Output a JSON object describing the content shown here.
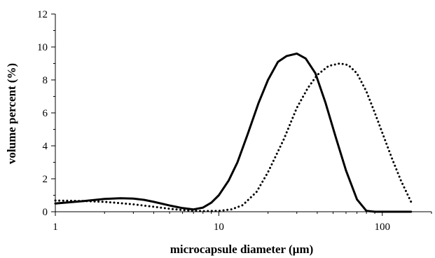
{
  "chart_data": {
    "type": "line",
    "title": "",
    "xlabel": "microcapsule diameter (µm)",
    "ylabel": "volume percent (%)",
    "xscale": "log",
    "xlim": [
      1,
      200
    ],
    "ylim": [
      0,
      12
    ],
    "x_ticks": [
      1,
      10,
      100
    ],
    "x_tick_labels": [
      "1",
      "10",
      "100"
    ],
    "y_ticks": [
      0,
      2,
      4,
      6,
      8,
      10,
      12
    ],
    "y_tick_labels": [
      "0",
      "2",
      "4",
      "6",
      "8",
      "10",
      "12"
    ],
    "grid": false,
    "legend": "none",
    "series": [
      {
        "style": "solid",
        "color": "#000000",
        "x": [
          1,
          1.5,
          2,
          2.5,
          3,
          3.5,
          4,
          5,
          6,
          7,
          8,
          9,
          10,
          11.5,
          13,
          15,
          17.5,
          20,
          23,
          26,
          30,
          34,
          39,
          45,
          52,
          60,
          70,
          80,
          90,
          100,
          120,
          150
        ],
        "y": [
          0.5,
          0.65,
          0.78,
          0.82,
          0.8,
          0.72,
          0.6,
          0.38,
          0.22,
          0.14,
          0.25,
          0.55,
          1.0,
          1.9,
          3.0,
          4.7,
          6.6,
          8.0,
          9.1,
          9.45,
          9.6,
          9.3,
          8.4,
          6.6,
          4.5,
          2.5,
          0.75,
          0.05,
          0.0,
          0.0,
          0.0,
          0.0
        ]
      },
      {
        "style": "dotted",
        "color": "#000000",
        "x": [
          1,
          1.5,
          2,
          2.5,
          3,
          4,
          5,
          6,
          7,
          8,
          10,
          12,
          14,
          17,
          20,
          25,
          30,
          35,
          40,
          47,
          55,
          62,
          70,
          80,
          90,
          100,
          115,
          130,
          150
        ],
        "y": [
          0.68,
          0.65,
          0.6,
          0.52,
          0.45,
          0.3,
          0.18,
          0.1,
          0.06,
          0.04,
          0.05,
          0.15,
          0.4,
          1.2,
          2.4,
          4.4,
          6.3,
          7.5,
          8.3,
          8.85,
          9.0,
          8.9,
          8.4,
          7.3,
          6.0,
          4.8,
          3.2,
          1.9,
          0.6
        ]
      }
    ]
  }
}
